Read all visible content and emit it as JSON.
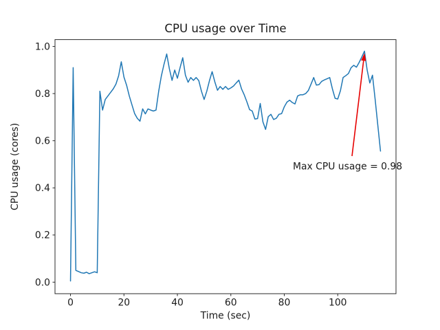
{
  "figure": {
    "kind": "matplotlib line plot"
  },
  "chart_data": {
    "type": "line",
    "title": "CPU usage over Time",
    "xlabel": "Time (sec)",
    "ylabel": "CPU usage (cores)",
    "x_ticks": [
      0,
      20,
      40,
      60,
      80,
      100
    ],
    "x_tick_labels": [
      "0",
      "20",
      "40",
      "60",
      "80",
      "100"
    ],
    "y_ticks": [
      0.0,
      0.2,
      0.4,
      0.6,
      0.8,
      1.0
    ],
    "y_tick_labels": [
      "0.0",
      "0.2",
      "0.4",
      "0.6",
      "0.8",
      "1.0"
    ],
    "xlim": [
      -5.8,
      121.8
    ],
    "ylim": [
      -0.049,
      1.029
    ],
    "grid": false,
    "legend": null,
    "line_color": "#1f77b4",
    "annotation": {
      "text": "Max CPU usage = 0.98",
      "color": "#e60000",
      "max_value": 0.98,
      "target_x": 110,
      "target_y": 0.98
    },
    "series": [
      {
        "name": "CPU usage (cores)",
        "x_start": 0,
        "x_step": 1,
        "values": [
          0.005,
          0.91,
          0.05,
          0.045,
          0.04,
          0.038,
          0.042,
          0.036,
          0.04,
          0.044,
          0.04,
          0.81,
          0.73,
          0.775,
          0.79,
          0.805,
          0.82,
          0.84,
          0.875,
          0.935,
          0.87,
          0.835,
          0.79,
          0.752,
          0.715,
          0.695,
          0.683,
          0.735,
          0.714,
          0.735,
          0.73,
          0.726,
          0.73,
          0.81,
          0.875,
          0.925,
          0.968,
          0.905,
          0.856,
          0.9,
          0.865,
          0.91,
          0.952,
          0.878,
          0.848,
          0.868,
          0.856,
          0.868,
          0.855,
          0.81,
          0.775,
          0.81,
          0.855,
          0.893,
          0.85,
          0.814,
          0.83,
          0.818,
          0.83,
          0.818,
          0.824,
          0.832,
          0.845,
          0.857,
          0.82,
          0.795,
          0.765,
          0.732,
          0.726,
          0.692,
          0.694,
          0.758,
          0.68,
          0.648,
          0.702,
          0.712,
          0.69,
          0.695,
          0.712,
          0.715,
          0.744,
          0.764,
          0.772,
          0.762,
          0.756,
          0.79,
          0.795,
          0.795,
          0.8,
          0.813,
          0.84,
          0.868,
          0.836,
          0.838,
          0.852,
          0.858,
          0.863,
          0.868,
          0.82,
          0.78,
          0.777,
          0.812,
          0.868,
          0.876,
          0.885,
          0.91,
          0.92,
          0.912,
          0.932,
          0.955,
          0.98,
          0.9,
          0.845,
          0.878,
          0.775,
          0.665,
          0.556
        ]
      }
    ]
  }
}
